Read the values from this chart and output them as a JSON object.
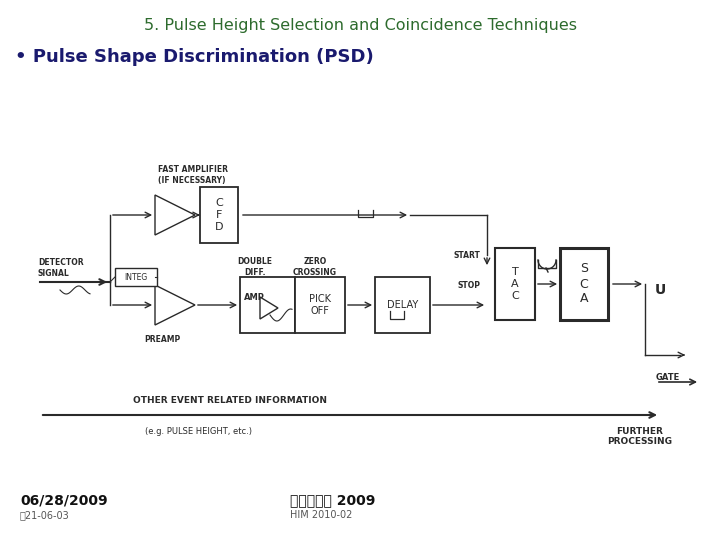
{
  "title": "5. Pulse Height Selection and Coincidence Techniques",
  "title_color": "#2d6b2d",
  "title_fontsize": 11.5,
  "bullet": "• Pulse Shape Discrimination (PSD)",
  "bullet_color": "#1a1a6e",
  "bullet_fontsize": 13,
  "date_text": "06/28/2009",
  "date_sub": "시21-06-03",
  "korean_text": "핵물리학교 2009",
  "korean_sub": "HIM 2010-02",
  "line_color": "#2a2a2a",
  "bg_color": "#ffffff"
}
